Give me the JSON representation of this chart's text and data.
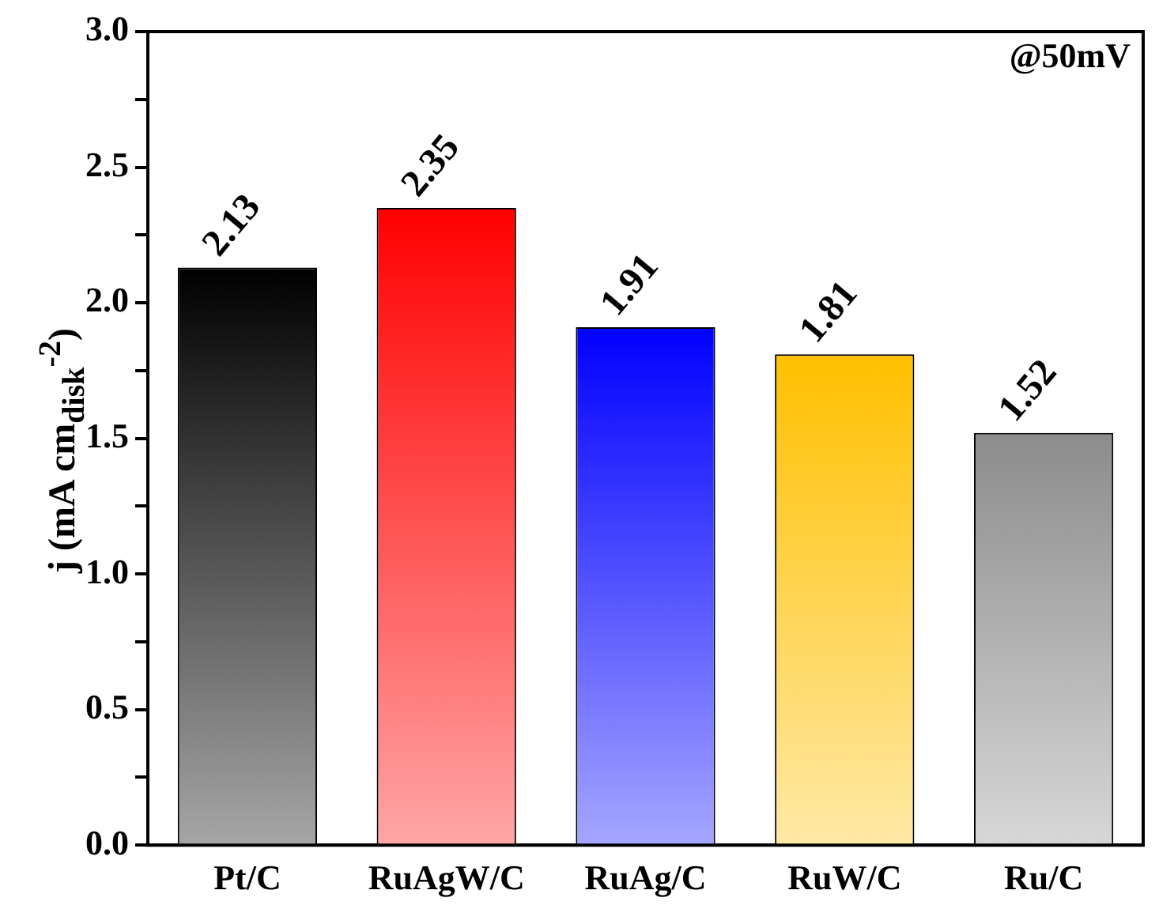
{
  "chart_data": {
    "type": "bar",
    "ylabel": "j (mA cm$_{disk}$$^{-2}$)",
    "categories": [
      "Pt/C",
      "RuAgW/C",
      "RuAg/C",
      "RuW/C",
      "Ru/C"
    ],
    "values": [
      2.13,
      2.35,
      1.91,
      1.81,
      1.52
    ],
    "colors": [
      "#000000",
      "#ff0000",
      "#0000ff",
      "#ffc000",
      "#8c8c8c"
    ],
    "ylim": [
      0,
      3
    ],
    "yticks": [
      {
        "value": 0,
        "label": "0.0"
      },
      {
        "value": 0.25,
        "label": null
      },
      0.5,
      {
        "value": 0.75,
        "label": null
      },
      {
        "value": 1,
        "label": "1.0"
      },
      {
        "value": 1.25,
        "label": null
      },
      1.5,
      {
        "value": 1.75,
        "label": null
      },
      {
        "value": 2,
        "label": "2.0"
      },
      {
        "value": 2.25,
        "label": null
      },
      2.5,
      {
        "value": 2.75,
        "label": null
      },
      {
        "value": 3,
        "label": "3.0"
      }
    ],
    "data_labels": true,
    "annotations": [
      "@50mV"
    ],
    "grid": false,
    "legend": false
  }
}
